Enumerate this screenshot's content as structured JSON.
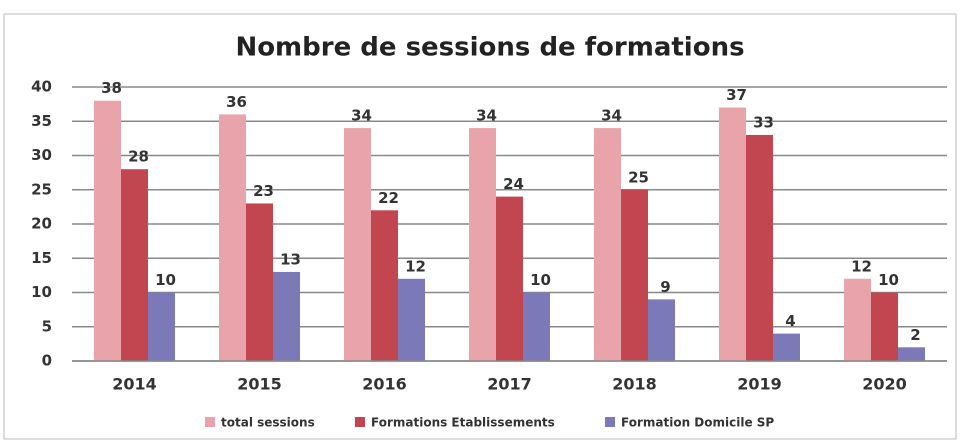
{
  "chart_data": {
    "type": "bar",
    "title": "Nombre de sessions de formations",
    "categories": [
      "2014",
      "2015",
      "2016",
      "2017",
      "2018",
      "2019",
      "2020"
    ],
    "series": [
      {
        "name": "total sessions",
        "color": "#e9a3aa",
        "values": [
          38,
          36,
          34,
          34,
          34,
          37,
          12
        ]
      },
      {
        "name": "Formations Etablissements",
        "color": "#c2464f",
        "values": [
          28,
          23,
          22,
          24,
          25,
          33,
          10
        ]
      },
      {
        "name": "Formation Domicile SP",
        "color": "#7c79b9",
        "values": [
          10,
          13,
          12,
          10,
          9,
          4,
          2
        ]
      }
    ],
    "ylim": [
      0,
      40
    ],
    "yticks": [
      0,
      5,
      10,
      15,
      20,
      25,
      30,
      35,
      40
    ],
    "grid": true,
    "legend": "bottom"
  }
}
